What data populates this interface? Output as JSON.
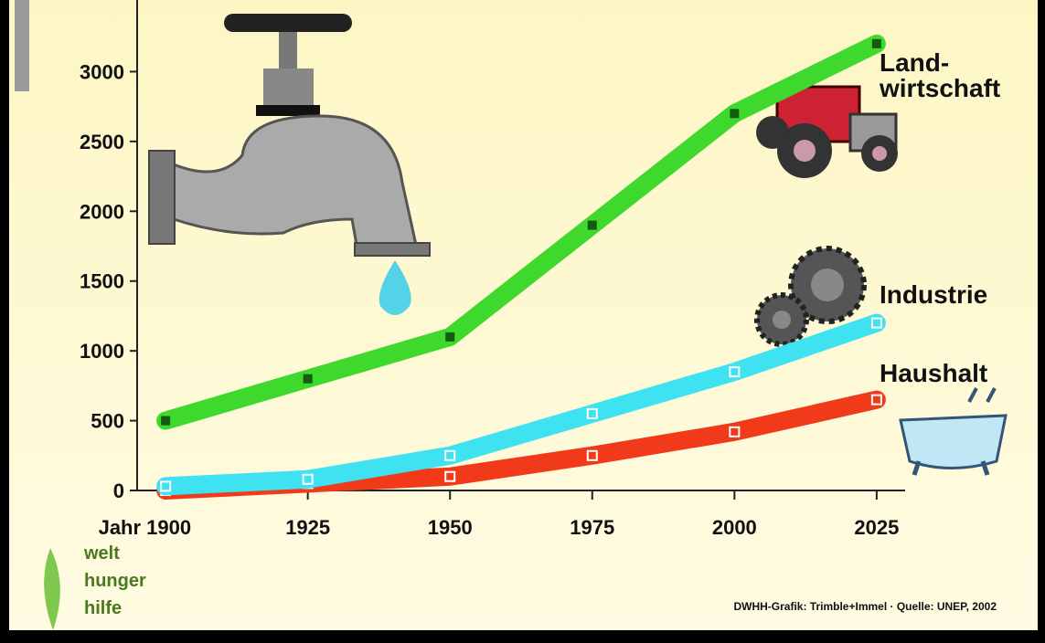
{
  "chart_data": {
    "type": "line",
    "x": [
      1900,
      1925,
      1950,
      1975,
      2000,
      2025
    ],
    "xlim": [
      1895,
      2030
    ],
    "xticks": [
      {
        "value": 1900,
        "label": "Jahr 1900"
      },
      1925,
      1950,
      1975,
      2000,
      2025
    ],
    "ylim": [
      0,
      3500
    ],
    "yticks": [
      0,
      500,
      1000,
      1500,
      2000,
      2500,
      3000
    ],
    "series": [
      {
        "name": "Land-wirtschaft",
        "color": "#3fd82c",
        "values": [
          500,
          800,
          1100,
          1900,
          2700,
          3200
        ]
      },
      {
        "name": "Industrie",
        "color": "#3ee2f0",
        "values": [
          30,
          80,
          250,
          550,
          850,
          1200
        ]
      },
      {
        "name": "Haushalt",
        "color": "#f03a1a",
        "values": [
          0,
          50,
          100,
          250,
          420,
          650
        ]
      }
    ]
  },
  "logo": [
    "welt",
    "hunger",
    "hilfe"
  ],
  "source": "DWHH-Grafik: Trimble+Immel · Quelle: UNEP, 2002"
}
